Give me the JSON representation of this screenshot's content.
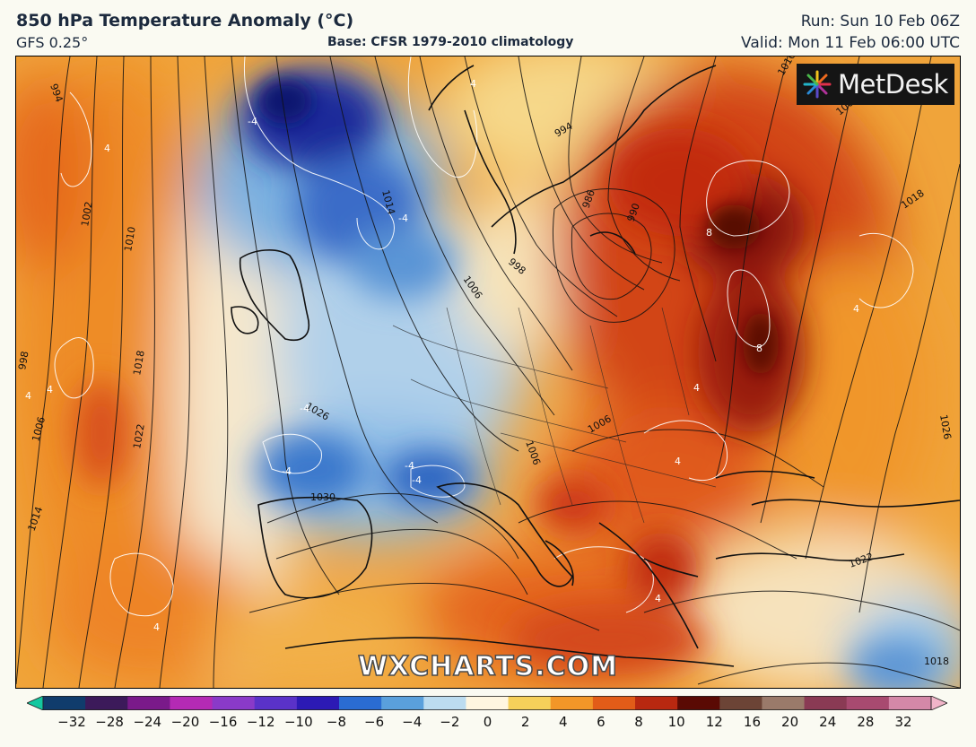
{
  "header": {
    "title": "850 hPa Temperature Anomaly (°C)",
    "subtitle": "GFS 0.25°",
    "base": "Base: CFSR 1979-2010 climatology",
    "run": "Run: Sun 10 Feb 06Z",
    "valid": "Valid: Mon 11 Feb 06:00 UTC"
  },
  "logo": {
    "text": "MetDesk"
  },
  "watermark": "WXCHARTS.COM",
  "map": {
    "isobar_labels": [
      "994",
      "1002",
      "1010",
      "998",
      "1018",
      "1006",
      "1022",
      "1014",
      "1030",
      "1026",
      "1014",
      "1006",
      "998",
      "994",
      "986",
      "990",
      "1010",
      "1018",
      "1026",
      "1022",
      "1018",
      "1006",
      "1006",
      "1006"
    ],
    "anomaly_labels": [
      "4",
      "-4",
      "-4",
      "4",
      "-4",
      "-4",
      "-4",
      "-4",
      "4",
      "4",
      "8",
      "8",
      "4",
      "4",
      "4",
      "4",
      "4"
    ]
  },
  "colorbar": {
    "ticks": [
      "−32",
      "−28",
      "−24",
      "−20",
      "−16",
      "−12",
      "−10",
      "−8",
      "−6",
      "−4",
      "−2",
      "0",
      "2",
      "4",
      "6",
      "8",
      "10",
      "12",
      "16",
      "20",
      "24",
      "28",
      "32"
    ],
    "colors": [
      "#14c8a0",
      "#103c6c",
      "#3c1a5a",
      "#7a1a8a",
      "#b42ab4",
      "#8a3ac8",
      "#5a32c8",
      "#2c1ab4",
      "#2a6cd2",
      "#5aa0dc",
      "#bcdcf0",
      "#fff6e0",
      "#f6d05a",
      "#f29628",
      "#e25c18",
      "#b82810",
      "#5a0a04",
      "#6c4436",
      "#9a7a6a",
      "#8a3a54",
      "#a84a70",
      "#d488a8",
      "#f0b4c8"
    ]
  }
}
